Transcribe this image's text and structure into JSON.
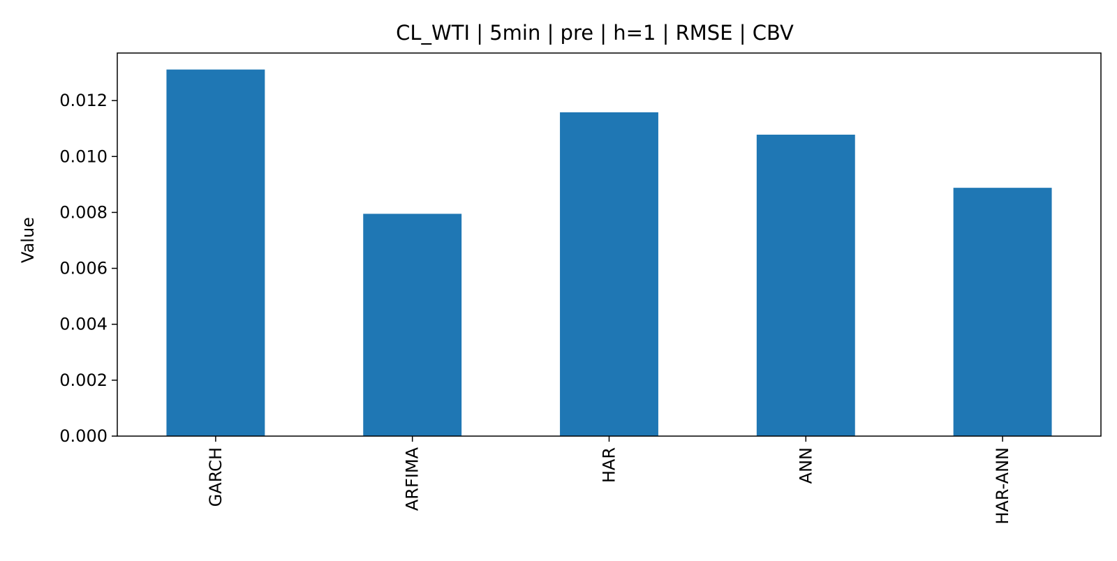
{
  "chart_data": {
    "type": "bar",
    "title": "CL_WTI | 5min | pre | h=1 | RMSE | CBV",
    "xlabel": "",
    "ylabel": "Value",
    "categories": [
      "GARCH",
      "ARFIMA",
      "HAR",
      "ANN",
      "HAR-ANN"
    ],
    "values": [
      0.01311,
      0.00795,
      0.01158,
      0.01078,
      0.00888
    ],
    "ylim": [
      0,
      0.0137
    ],
    "yticks": [
      0.0,
      0.002,
      0.004,
      0.006,
      0.008,
      0.01,
      0.012
    ],
    "ytick_labels": [
      "0.000",
      "0.002",
      "0.004",
      "0.006",
      "0.008",
      "0.010",
      "0.012"
    ],
    "bar_color": "#1f77b4",
    "grid": false,
    "legend": "none"
  }
}
